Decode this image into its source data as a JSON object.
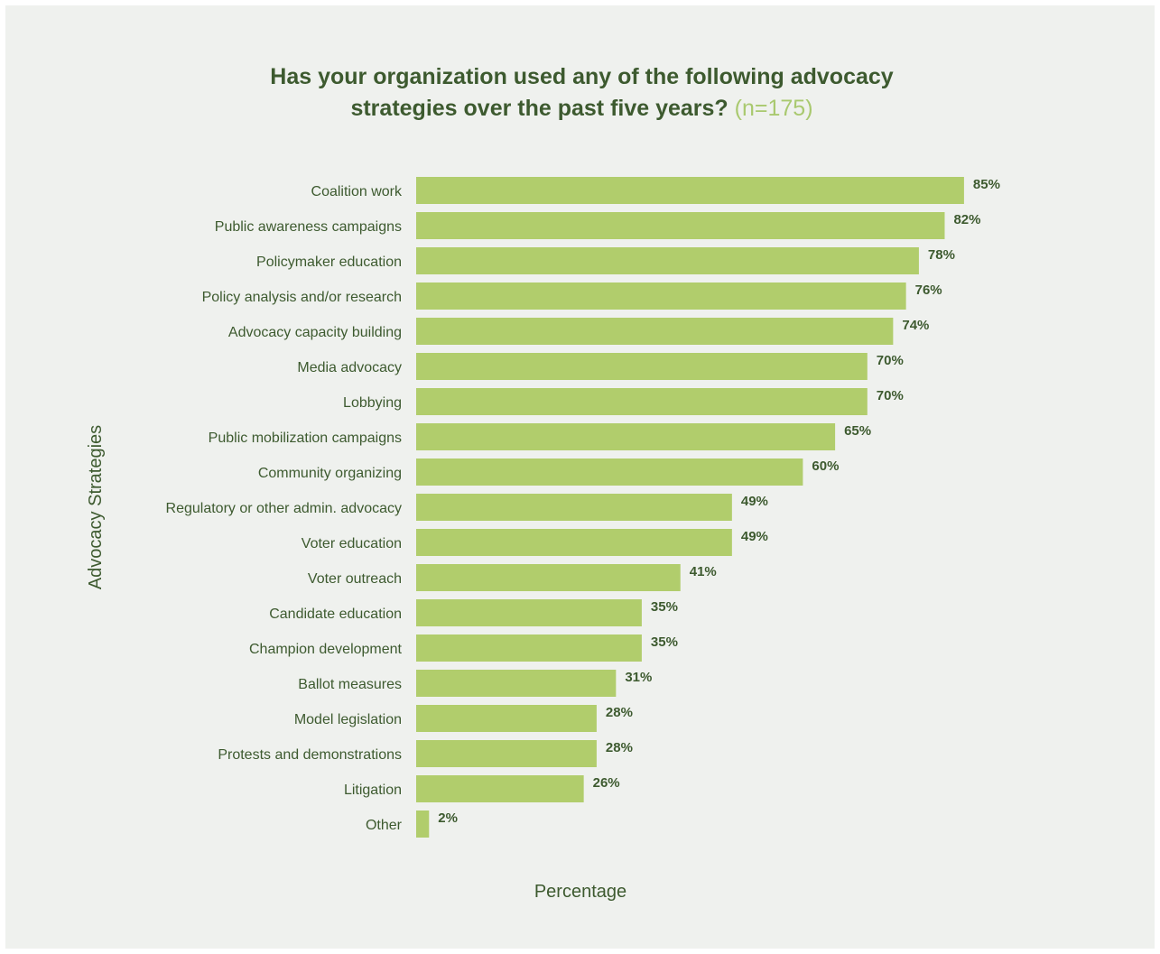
{
  "title": {
    "line1": "Has your organization used any of the following advocacy",
    "line2": "strategies over the past five years?",
    "sample": "(n=175)"
  },
  "colors": {
    "background": "#eff1ee",
    "bar": "#b1cd6c",
    "text": "#3d5a2f",
    "sample_text": "#a9c96f"
  },
  "chart_data": {
    "type": "bar",
    "orientation": "horizontal",
    "title": "Has your organization used any of the following advocacy strategies over the past five years? (n=175)",
    "xlabel": "Percentage",
    "ylabel": "Advocacy Strategies",
    "xlim": [
      0,
      100
    ],
    "grid": false,
    "categories": [
      "Coalition work",
      "Public awareness campaigns",
      "Policymaker education",
      "Policy analysis and/or research",
      "Advocacy capacity building",
      "Media advocacy",
      "Lobbying",
      "Public mobilization campaigns",
      "Community organizing",
      "Regulatory or other admin. advocacy",
      "Voter education",
      "Voter outreach",
      "Candidate education",
      "Champion development",
      "Ballot measures",
      "Model legislation",
      "Protests and demonstrations",
      "Litigation",
      "Other"
    ],
    "values": [
      85,
      82,
      78,
      76,
      74,
      70,
      70,
      65,
      60,
      49,
      49,
      41,
      35,
      35,
      31,
      28,
      28,
      26,
      2
    ],
    "value_labels": [
      "85%",
      "82%",
      "78%",
      "76%",
      "74%",
      "70%",
      "70%",
      "65%",
      "60%",
      "49%",
      "49%",
      "41%",
      "35%",
      "35%",
      "31%",
      "28%",
      "28%",
      "26%",
      "2%"
    ]
  }
}
